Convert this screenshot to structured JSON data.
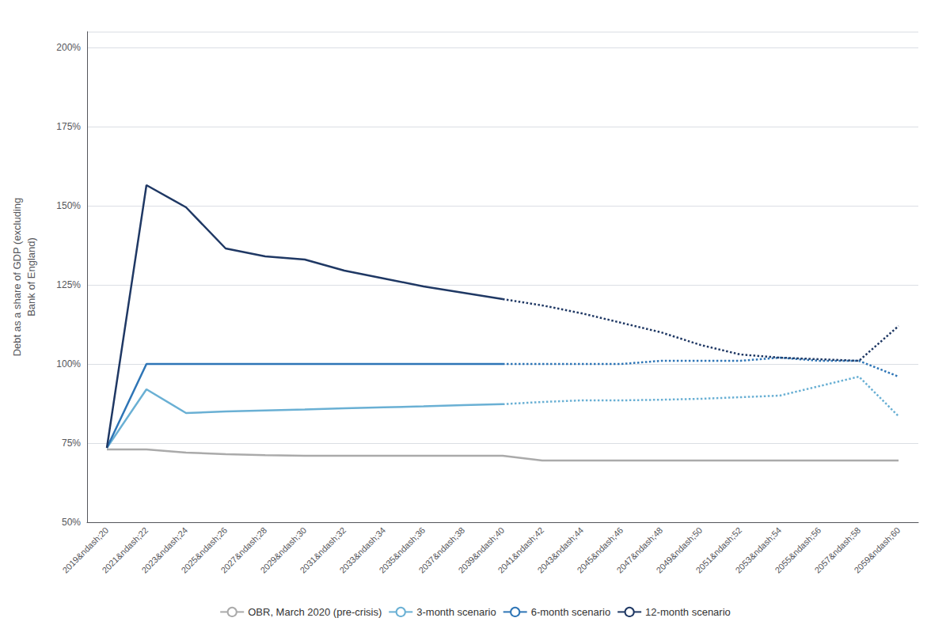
{
  "chart_data": {
    "type": "line",
    "ylabel": "Debt as a share of GDP (excluding\nBank of England)",
    "categories": [
      "2019&ndash;20",
      "2021&ndash;22",
      "2023&ndash;24",
      "2025&ndash;26",
      "2027&ndash;28",
      "2029&ndash;30",
      "2031&ndash;32",
      "2033&ndash;34",
      "2035&ndash;36",
      "2037&ndash;38",
      "2039&ndash;40",
      "2041&ndash;42",
      "2043&ndash;44",
      "2045&ndash;46",
      "2047&ndash;48",
      "2049&ndash;50",
      "2051&ndash;52",
      "2053&ndash;54",
      "2055&ndash;56",
      "2057&ndash;58",
      "2059&ndash;60"
    ],
    "series": [
      {
        "name": "OBR, March 2020 (pre-crisis)",
        "color": "#aaaaaa",
        "line_style": "solid",
        "values": [
          0.73,
          0.73,
          0.72,
          0.715,
          0.712,
          0.71,
          0.71,
          0.71,
          0.71,
          0.71,
          0.71,
          0.695,
          0.695,
          0.695,
          0.695,
          0.695,
          0.695,
          0.695,
          0.695,
          0.695,
          0.695
        ]
      },
      {
        "name": "3-month scenario",
        "color": "#6ab0d4",
        "line_style": "solid",
        "values": [
          0.735,
          0.92,
          0.845,
          0.85,
          0.853,
          0.856,
          0.86,
          0.863,
          0.866,
          0.87,
          0.873,
          null,
          null,
          null,
          null,
          null,
          null,
          null,
          null,
          null,
          null
        ]
      },
      {
        "name": "3-month scenario",
        "color": "#6ab0d4",
        "line_style": "dotted",
        "values": [
          null,
          null,
          null,
          null,
          null,
          null,
          null,
          null,
          null,
          null,
          0.873,
          0.88,
          0.885,
          0.885,
          0.887,
          0.89,
          0.895,
          0.9,
          0.93,
          0.96,
          0.835
        ]
      },
      {
        "name": "6-month scenario",
        "color": "#2e75b6",
        "line_style": "solid",
        "values": [
          0.735,
          1.0,
          1.0,
          1.0,
          1.0,
          1.0,
          1.0,
          1.0,
          1.0,
          1.0,
          1.0,
          null,
          null,
          null,
          null,
          null,
          null,
          null,
          null,
          null,
          null
        ]
      },
      {
        "name": "6-month scenario",
        "color": "#2e75b6",
        "line_style": "dotted",
        "values": [
          null,
          null,
          null,
          null,
          null,
          null,
          null,
          null,
          null,
          null,
          1.0,
          1.0,
          1.0,
          1.0,
          1.01,
          1.01,
          1.01,
          1.02,
          1.01,
          1.01,
          0.96
        ]
      },
      {
        "name": "12-month scenario",
        "color": "#1f3864",
        "line_style": "solid",
        "values": [
          0.735,
          1.565,
          1.495,
          1.365,
          1.34,
          1.33,
          1.295,
          1.27,
          1.245,
          1.225,
          1.205,
          null,
          null,
          null,
          null,
          null,
          null,
          null,
          null,
          null,
          null
        ]
      },
      {
        "name": "12-month scenario",
        "color": "#1f3864",
        "line_style": "dotted",
        "values": [
          null,
          null,
          null,
          null,
          null,
          null,
          null,
          null,
          null,
          null,
          1.205,
          1.185,
          1.16,
          1.13,
          1.1,
          1.06,
          1.03,
          1.02,
          1.015,
          1.01,
          1.12
        ]
      }
    ],
    "ylim": [
      0.5,
      2.05
    ],
    "yticks": [
      {
        "value": 0.5,
        "label": "50%"
      },
      {
        "value": 0.75,
        "label": "75%"
      },
      {
        "value": 1.0,
        "label": "100%"
      },
      {
        "value": 1.25,
        "label": "125%"
      },
      {
        "value": 1.5,
        "label": "150%"
      },
      {
        "value": 1.75,
        "label": "175%"
      },
      {
        "value": 2.0,
        "label": "200%"
      }
    ],
    "grid": true,
    "legend": "bottom"
  }
}
